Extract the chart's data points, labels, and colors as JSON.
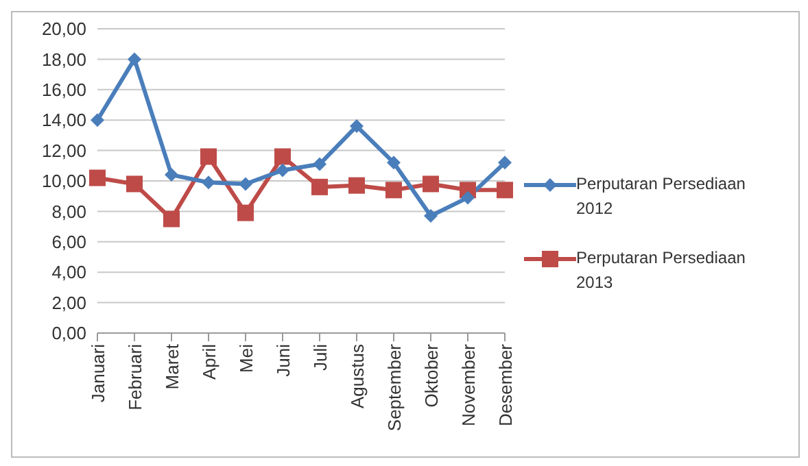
{
  "chart_data": {
    "type": "line",
    "categories": [
      "Januari",
      "Februari",
      "Maret",
      "April",
      "Mei",
      "Juni",
      "Juli",
      "Agustus",
      "September",
      "Oktober",
      "November",
      "Desember"
    ],
    "series": [
      {
        "name": "Perputaran Persediaan 2012",
        "color": "#4a7ebb",
        "marker": "diamond",
        "values": [
          14.0,
          18.0,
          10.4,
          9.9,
          9.8,
          10.7,
          11.1,
          13.6,
          11.2,
          7.7,
          8.9,
          11.2
        ]
      },
      {
        "name": "Perputaran Persediaan 2013",
        "color": "#be4b48",
        "marker": "square",
        "values": [
          10.2,
          9.8,
          7.5,
          11.6,
          7.9,
          11.6,
          9.6,
          9.7,
          9.4,
          9.8,
          9.4,
          9.4
        ]
      }
    ],
    "ylim": [
      0,
      20
    ],
    "yticks": [
      {
        "value": 0,
        "label": "0,00"
      },
      {
        "value": 2,
        "label": "2,00"
      },
      {
        "value": 4,
        "label": "4,00"
      },
      {
        "value": 6,
        "label": "6,00"
      },
      {
        "value": 8,
        "label": "8,00"
      },
      {
        "value": 10,
        "label": "10,00"
      },
      {
        "value": 12,
        "label": "12,00"
      },
      {
        "value": 14,
        "label": "14,00"
      },
      {
        "value": 16,
        "label": "16,00"
      },
      {
        "value": 18,
        "label": "18,00"
      },
      {
        "value": 20,
        "label": "20,00"
      }
    ],
    "grid": "y",
    "legend": "right"
  }
}
